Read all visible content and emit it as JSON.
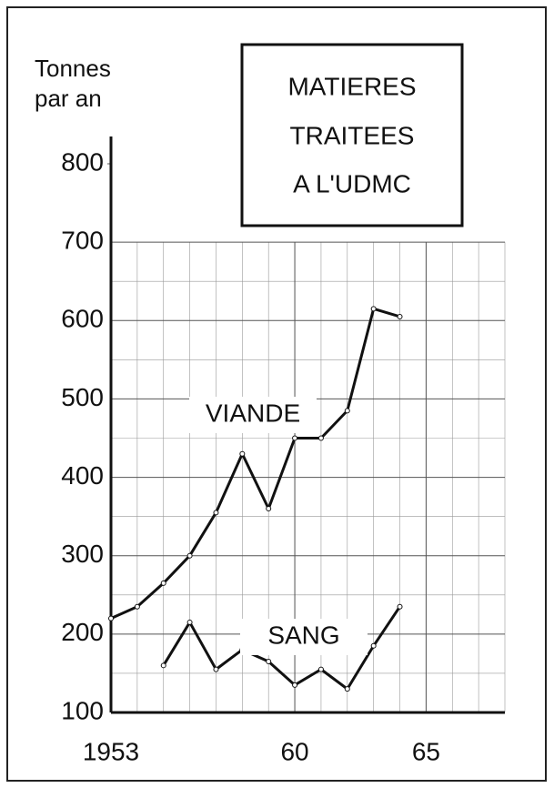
{
  "chart_data": {
    "type": "line",
    "title": [
      "MATIERES",
      "TRAITEES",
      "A L'UDMC"
    ],
    "y_label": [
      "Tonnes",
      "par an"
    ],
    "x": [
      1953,
      1954,
      1955,
      1956,
      1957,
      1958,
      1959,
      1960,
      1961,
      1962,
      1963,
      1964
    ],
    "series": [
      {
        "name": "VIANDE",
        "color": "#111111",
        "values": [
          220,
          235,
          265,
          300,
          355,
          430,
          360,
          450,
          450,
          485,
          615,
          605
        ]
      },
      {
        "name": "SANG",
        "color": "#111111",
        "values": [
          null,
          null,
          160,
          215,
          155,
          180,
          165,
          135,
          155,
          130,
          185,
          235
        ]
      }
    ],
    "xlim": [
      1953,
      1968
    ],
    "xticks": [
      1953,
      {
        "value": 1960,
        "label": "60"
      },
      {
        "value": 1965,
        "label": "65"
      }
    ],
    "ylim": [
      100,
      800
    ],
    "yticks": [
      100,
      200,
      300,
      400,
      500,
      600,
      700,
      800
    ],
    "grid": true
  }
}
